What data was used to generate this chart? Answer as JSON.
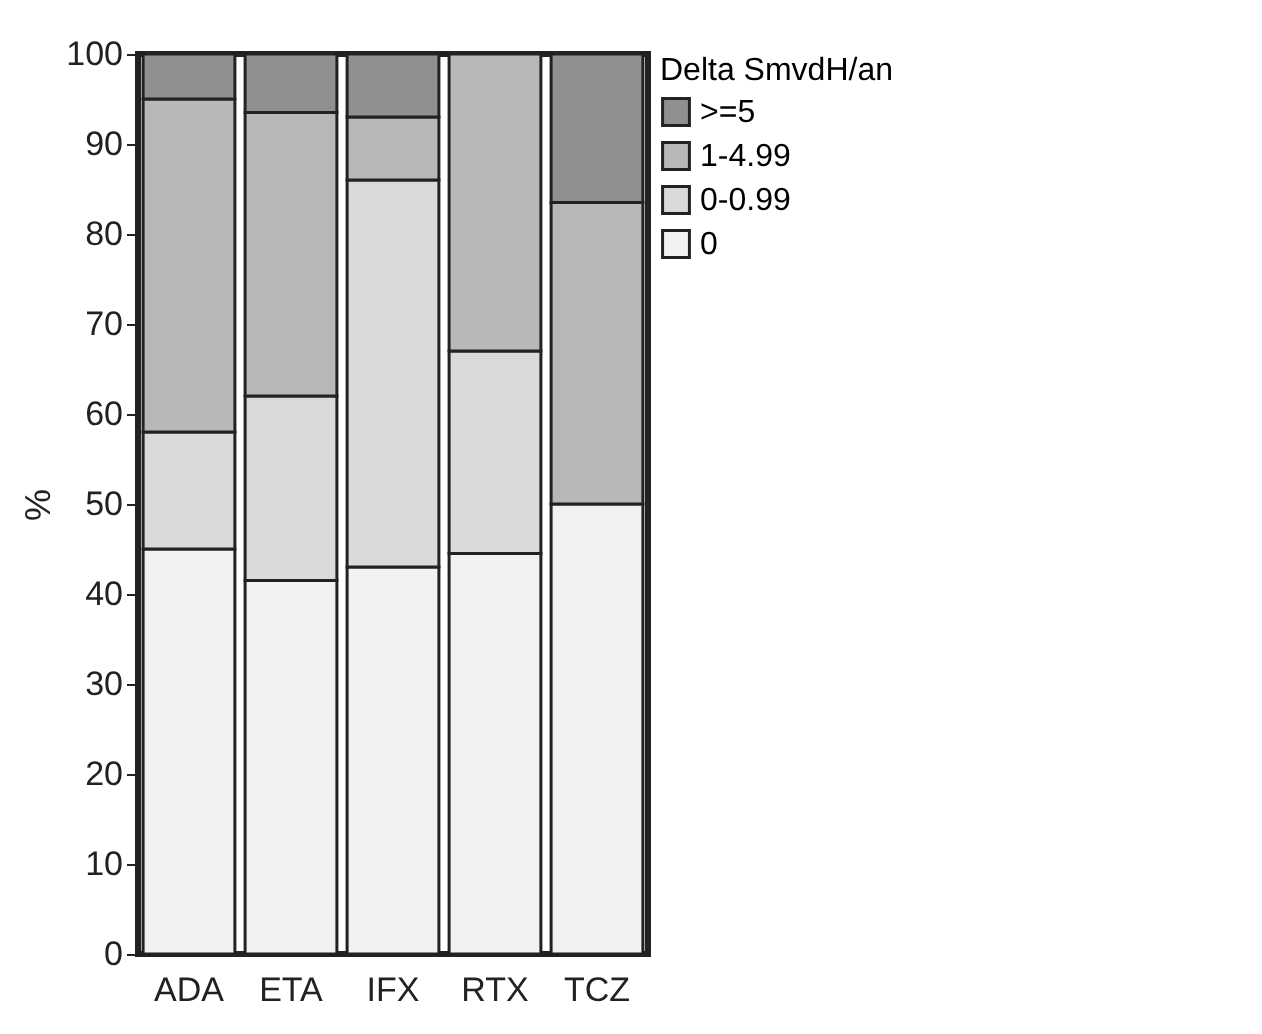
{
  "chart_data": {
    "type": "bar",
    "stacked": true,
    "ylabel": "%",
    "legend_title": "Delta SmvdH/an",
    "legend": "right",
    "grid": false,
    "categories": [
      "ADA",
      "ETA",
      "IFX",
      "RTX",
      "TCZ"
    ],
    "ylim": [
      0,
      100
    ],
    "yticks": [
      0,
      10,
      20,
      30,
      40,
      50,
      60,
      70,
      80,
      90,
      100
    ],
    "series": [
      {
        "name": "0",
        "color": "#f2f2f2",
        "values": [
          45,
          41.5,
          43,
          44.5,
          50
        ]
      },
      {
        "name": "0-0.99",
        "color": "#dadada",
        "values": [
          13,
          20.5,
          43,
          22.5,
          0
        ]
      },
      {
        "name": "1-4.99",
        "color": "#b8b8b8",
        "values": [
          37,
          31.5,
          7,
          33,
          33.5
        ]
      },
      {
        "name": ">=5",
        "color": "#909090",
        "values": [
          5,
          6.5,
          7,
          0,
          16.5
        ]
      }
    ]
  }
}
